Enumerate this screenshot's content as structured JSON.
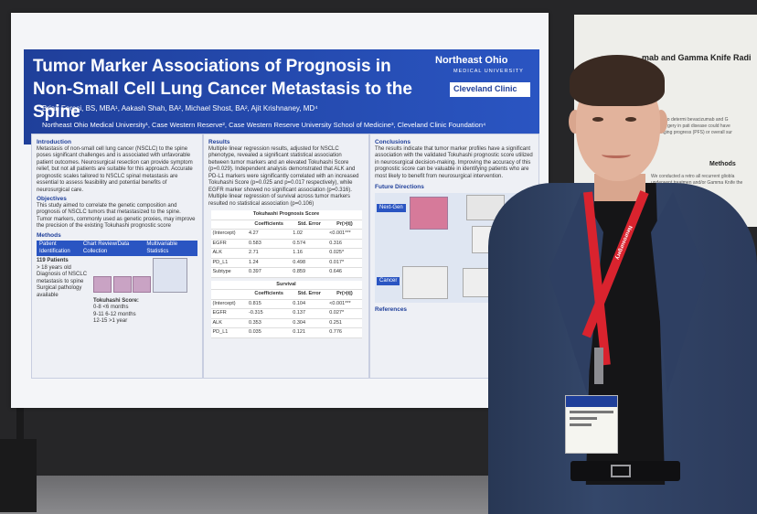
{
  "poster": {
    "title": "Tumor Marker Associations of Prognosis in Non-Small Cell Lung Cancer Metastasis to the Spine",
    "authors": "Brian Foresi, BS, MBA¹, Aakash Shah, BA², Michael Shost, BA², Ajit Krishnaney, MD⁴",
    "affiliations": "Northeast Ohio Medical University¹, Case Western Reserve², Case Western Reserve University School of Medicine³, Cleveland Clinic Foundation⁴",
    "logo_neo": "Northeast Ohio",
    "logo_neo_sub": "MEDICAL UNIVERSITY",
    "logo_cc": "Cleveland Clinic",
    "intro_h": "Introduction",
    "intro": "Metastasis of non-small cell lung cancer (NSCLC) to the spine poses significant challenges and is associated with unfavorable patient outcomes. Neurosurgical resection can provide symptom relief, but not all patients are suitable for this approach. Accurate prognostic scales tailored to NSCLC spinal metastasis are essential to assess feasibility and potential benefits of neurosurgical care.",
    "obj_h": "Objectives",
    "obj": "This study aimed to correlate the genetic composition and prognosis of NSCLC tumors that metastasized to the spine. Tumor markers, commonly used as genetic proxies, may improve the precision of the existing Tokuhashi prognostic score",
    "methods_h": "Methods",
    "methods_cols": [
      "Patient Identification",
      "Chart Review/Data Collection",
      "Multivariable Statistics"
    ],
    "patients": "119 Patients",
    "criteria": [
      "> 18 years old",
      "Diagnosis of NSCLC metastasis to spine",
      "Surgical pathology available"
    ],
    "tokuhashi_h": "Tokuhashi Score:",
    "tokuhashi": [
      "0-8 <6 months",
      "9-11 6-12 months",
      "12-15 >1 year"
    ],
    "results_h": "Results",
    "results": "Multiple linear regression results, adjusted for NSCLC phenotype, revealed a significant statistical association between tumor markers and an elevated Tokuhashi Score (p=0.029). Independent analysis demonstrated that ALK and PD-L1 markers were significantly correlated with an increased Tokuhashi Score (p=0.025 and p=0.017 respectively), while EGFR marker showed no significant association (p=0.316). Multiple linear regression of survival across tumor markers resulted no statistical association (p=0.106)",
    "table1": {
      "title": "Tokuhashi Prognosis Score",
      "headers": [
        "",
        "Coefficients",
        "Std. Error",
        "Pr(>|t|)"
      ],
      "rows": [
        [
          "(Intercept)",
          "4.27",
          "1.02",
          "<0.001***"
        ],
        [
          "EGFR",
          "0.583",
          "0.574",
          "0.316"
        ],
        [
          "ALK",
          "2.71",
          "1.16",
          "0.025*"
        ],
        [
          "PD_L1",
          "1.24",
          "0.498",
          "0.017*"
        ],
        [
          "Subtype",
          "0.397",
          "0.859",
          "0.646"
        ]
      ]
    },
    "table2": {
      "title": "Survival",
      "headers": [
        "",
        "Coefficients",
        "Std. Error",
        "Pr(>|t|)"
      ],
      "rows": [
        [
          "(Intercept)",
          "0.815",
          "0.104",
          "<0.001***"
        ],
        [
          "EGFR",
          "-0.315",
          "0.137",
          "0.027*"
        ],
        [
          "ALK",
          "0.353",
          "0.304",
          "0.251"
        ],
        [
          "PD_L1",
          "0.035",
          "0.121",
          "0.776"
        ]
      ]
    },
    "conclusions_h": "Conclusions",
    "conclusions": "The results indicate that tumor marker profiles have a significant association with the validated Tokuhashi prognostic score utilized in neurosurgical decision-making. Improving the accuracy of this prognostic score can be valuable in identifying patients who are most likely to benefit from neurosurgical intervention.",
    "future_h": "Future Directions",
    "future_label_1": "Next-Gen",
    "future_label_2": "Cancer",
    "refs_h": "References"
  },
  "poster2": {
    "title": "mab and Gamma Knife Radi",
    "text": "set out to determi bevacizumab and G radiosurgery in pati disease could have prolonging progress (PFS) or overall sur",
    "methods": "Methods",
    "methods_text": "We conducted a retro all recurrent gliobla underwent treatmen and/or Gamma Knife the Roswell Park Co"
  },
  "lanyard": {
    "text": "Neurosurgery"
  },
  "colors": {
    "poster_blue": "#2a55c2",
    "lanyard_red": "#d9232e",
    "jacket": "#34476a"
  }
}
